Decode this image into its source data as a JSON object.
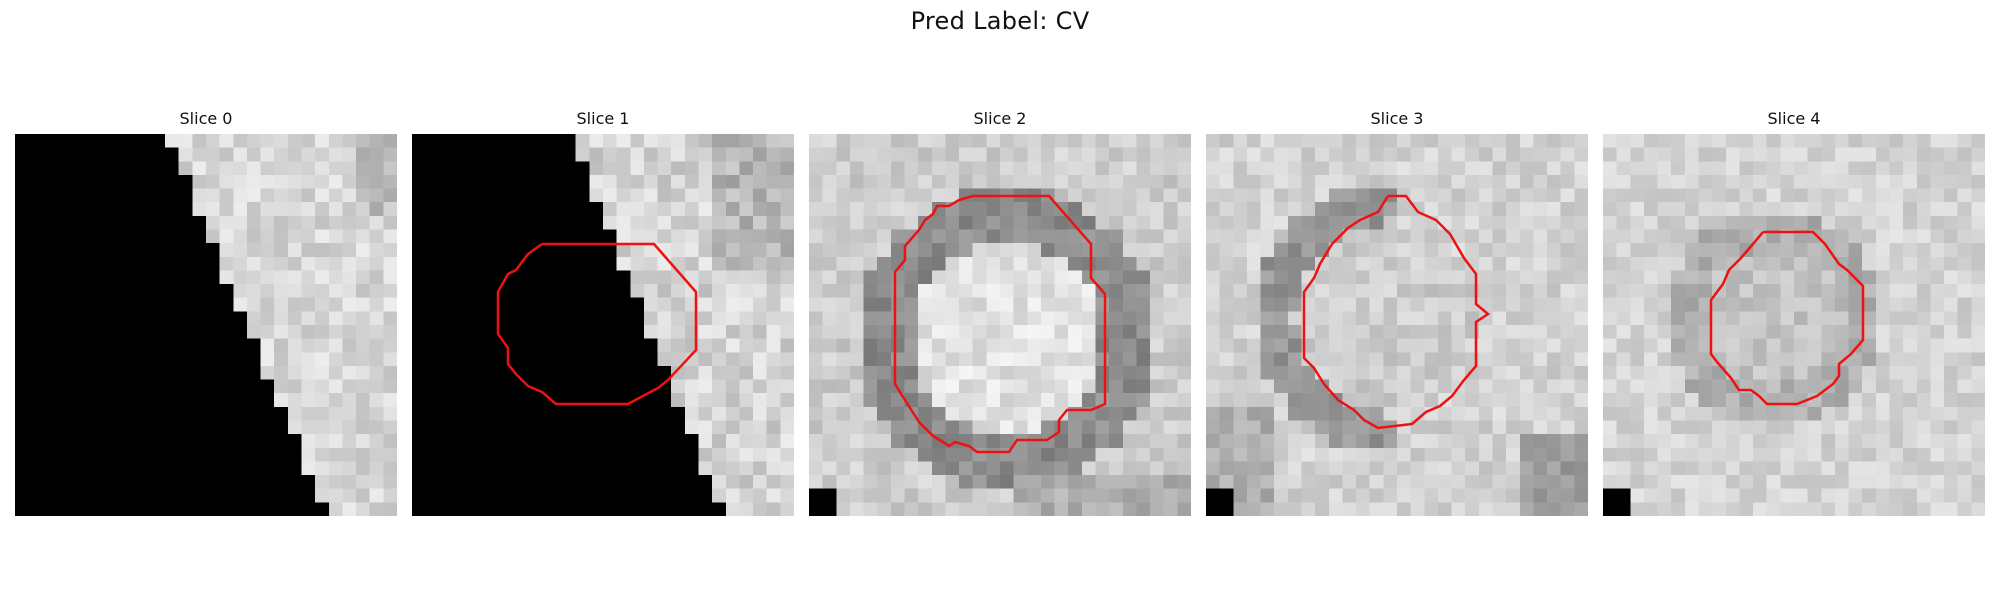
{
  "title": "Pred Label: CV",
  "colors": {
    "contour": "#ee1111",
    "background": "#ffffff"
  },
  "slices": [
    {
      "label": "Slice 0",
      "has_contour": false
    },
    {
      "label": "Slice 1",
      "has_contour": true
    },
    {
      "label": "Slice 2",
      "has_contour": true
    },
    {
      "label": "Slice 3",
      "has_contour": true
    },
    {
      "label": "Slice 4",
      "has_contour": true
    }
  ]
}
